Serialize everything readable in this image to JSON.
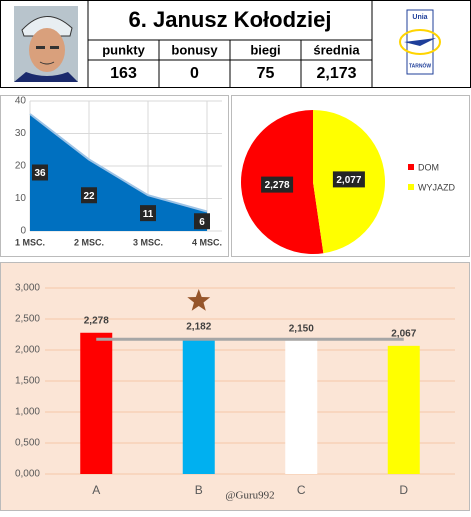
{
  "header": {
    "title": "6. Janusz Kołodziej",
    "stats": [
      {
        "label": "punkty",
        "value": "163"
      },
      {
        "label": "bonusy",
        "value": "0"
      },
      {
        "label": "biegi",
        "value": "75"
      },
      {
        "label": "średnia",
        "value": "2,173"
      }
    ],
    "logo": [
      "Unia",
      "TARNÓW"
    ]
  },
  "chart_data": [
    {
      "type": "area",
      "categories": [
        "1 MSC.",
        "2 MSC.",
        "3 MSC.",
        "4 MSC."
      ],
      "values": [
        36,
        22,
        11,
        6
      ],
      "color": "#0070c0",
      "ylim": [
        0,
        40
      ],
      "yticks": [
        0,
        10,
        20,
        30,
        40
      ],
      "grid": true
    },
    {
      "type": "pie",
      "categories": [
        "DOM",
        "WYJAZD"
      ],
      "values": [
        2.278,
        2.077
      ],
      "value_labels": [
        "2,278",
        "2,077"
      ],
      "colors": [
        "#ff0000",
        "#ffff00"
      ],
      "legend": "right"
    },
    {
      "type": "bar",
      "categories": [
        "A",
        "B",
        "C",
        "D"
      ],
      "values": [
        2.278,
        2.182,
        2.15,
        2.067
      ],
      "value_labels": [
        "2,278",
        "2,182",
        "2,150",
        "2,067"
      ],
      "colors": [
        "#ff0000",
        "#00b0f0",
        "#ffffff",
        "#ffff00"
      ],
      "mean_line": 2.173,
      "ylim": [
        0,
        3
      ],
      "yticks": [
        {
          "value": 0,
          "label": "0,000"
        },
        {
          "value": 0.5,
          "label": "0,500"
        },
        {
          "value": 1,
          "label": "1,000"
        },
        {
          "value": 1.5,
          "label": "1,500"
        },
        {
          "value": 2,
          "label": "2,000"
        },
        {
          "value": 2.5,
          "label": "2,500"
        },
        {
          "value": 3,
          "label": "3,000"
        }
      ],
      "grid": true,
      "credit": "@Guru992"
    }
  ]
}
